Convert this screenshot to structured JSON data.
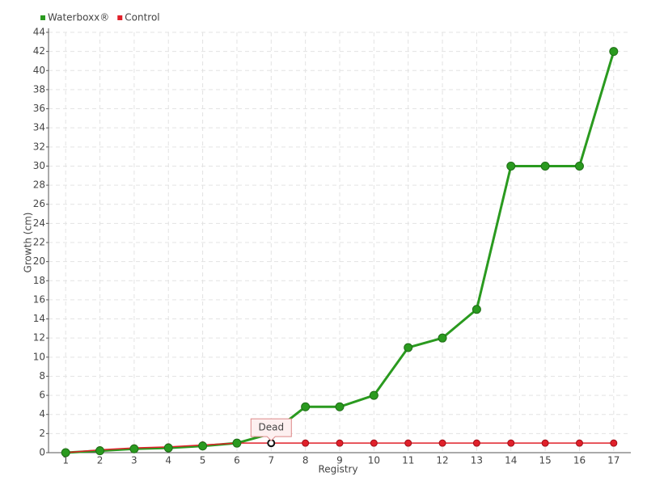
{
  "chart_data": {
    "type": "line",
    "categories": [
      "1",
      "2",
      "3",
      "4",
      "5",
      "6",
      "7",
      "8",
      "9",
      "10",
      "11",
      "12",
      "13",
      "14",
      "15",
      "16",
      "17"
    ],
    "series": [
      {
        "name": "Waterboxx®",
        "color": "#2a9a1f",
        "values": [
          0,
          0.2,
          0.4,
          0.5,
          0.7,
          1,
          2,
          4.8,
          4.8,
          6,
          11,
          12,
          15,
          30,
          30,
          30,
          42
        ]
      },
      {
        "name": "Control",
        "color": "#e0202a",
        "values": [
          0,
          0.3,
          0.5,
          0.6,
          0.8,
          1,
          1,
          1,
          1,
          1,
          1,
          1,
          1,
          1,
          1,
          1,
          1
        ]
      }
    ],
    "annotation": "Dead",
    "xlabel": "Registry",
    "ylabel": "Growth (cm)",
    "ylim": [
      0,
      44
    ],
    "yticks": [
      0,
      2,
      4,
      6,
      8,
      10,
      12,
      14,
      16,
      18,
      20,
      22,
      24,
      26,
      28,
      30,
      32,
      34,
      36,
      38,
      40,
      42,
      44
    ],
    "grid": true
  }
}
